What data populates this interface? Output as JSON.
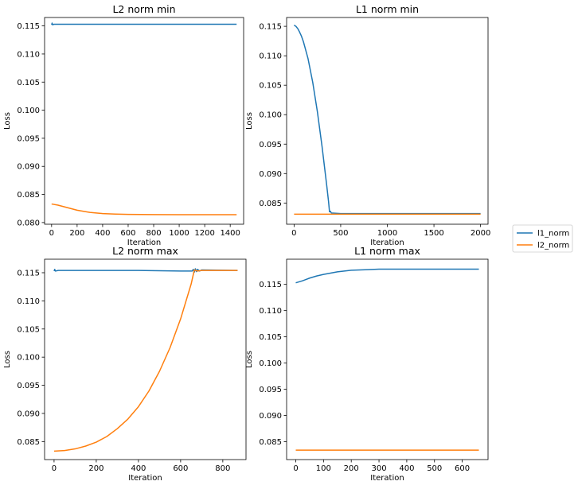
{
  "colors": {
    "l1_norm": "#1f77b4",
    "l2_norm": "#ff7f0e"
  },
  "legend": {
    "placement": "right-center",
    "entries": [
      "l1_norm",
      "l2_norm"
    ]
  },
  "chart_data": [
    {
      "type": "line",
      "title": "L2 norm min",
      "xlabel": "Iteration",
      "ylabel": "Loss",
      "xlim": [
        -55,
        1505
      ],
      "ylim": [
        0.0797,
        0.1165
      ],
      "xticks": [
        0,
        200,
        400,
        600,
        800,
        1000,
        1200,
        1400
      ],
      "yticks": [
        0.08,
        0.085,
        0.09,
        0.095,
        0.1,
        0.105,
        0.11,
        0.115
      ],
      "grid": false,
      "series": [
        {
          "name": "l1_norm",
          "x": [
            0,
            4,
            8,
            20,
            100,
            400,
            800,
            1200,
            1450
          ],
          "y": [
            0.1152,
            0.1155,
            0.1152,
            0.1153,
            0.1153,
            0.1153,
            0.1153,
            0.1153,
            0.1153
          ]
        },
        {
          "name": "l2_norm",
          "x": [
            0,
            50,
            100,
            150,
            200,
            250,
            300,
            350,
            400,
            500,
            600,
            700,
            800,
            1000,
            1200,
            1450
          ],
          "y": [
            0.0833,
            0.0831,
            0.0828,
            0.0825,
            0.0822,
            0.082,
            0.0818,
            0.0817,
            0.0816,
            0.0815,
            0.08145,
            0.08143,
            0.08142,
            0.0814,
            0.0814,
            0.0814
          ]
        }
      ]
    },
    {
      "type": "line",
      "title": "L1 norm min",
      "xlabel": "Iteration",
      "ylabel": "Loss",
      "xlim": [
        -80,
        2080
      ],
      "ylim": [
        0.0814,
        0.1165
      ],
      "xticks": [
        0,
        500,
        1000,
        1500,
        2000
      ],
      "yticks": [
        0.085,
        0.09,
        0.095,
        0.1,
        0.105,
        0.11,
        0.115
      ],
      "grid": false,
      "series": [
        {
          "name": "l1_norm",
          "x": [
            0,
            20,
            40,
            60,
            80,
            100,
            150,
            200,
            250,
            300,
            350,
            370,
            380,
            390,
            400,
            500,
            1000,
            1500,
            2000
          ],
          "y": [
            0.1152,
            0.115,
            0.1146,
            0.114,
            0.1133,
            0.1124,
            0.1095,
            0.1055,
            0.1005,
            0.0946,
            0.088,
            0.0852,
            0.0835,
            0.0836,
            0.0833,
            0.0832,
            0.0832,
            0.0832,
            0.0832
          ]
        },
        {
          "name": "l2_norm",
          "x": [
            0,
            500,
            1000,
            1500,
            2000
          ],
          "y": [
            0.0831,
            0.0831,
            0.0831,
            0.0831,
            0.0831
          ]
        }
      ]
    },
    {
      "type": "line",
      "title": "L2 norm max",
      "xlabel": "Iteration",
      "ylabel": "Loss",
      "xlim": [
        -45,
        910
      ],
      "ylim": [
        0.0818,
        0.1174
      ],
      "xticks": [
        0,
        200,
        400,
        600,
        800
      ],
      "yticks": [
        0.085,
        0.09,
        0.095,
        0.1,
        0.105,
        0.11,
        0.115
      ],
      "grid": false,
      "series": [
        {
          "name": "l1_norm",
          "x": [
            0,
            3,
            6,
            20,
            200,
            400,
            600,
            655,
            660,
            665,
            670,
            675,
            680,
            690,
            700,
            870
          ],
          "y": [
            0.1153,
            0.1156,
            0.1153,
            0.1154,
            0.1154,
            0.1154,
            0.1153,
            0.1153,
            0.1156,
            0.1151,
            0.1157,
            0.1152,
            0.1156,
            0.1153,
            0.1155,
            0.1154
          ]
        },
        {
          "name": "l2_norm",
          "x": [
            0,
            50,
            100,
            150,
            200,
            250,
            300,
            350,
            400,
            450,
            500,
            550,
            600,
            650,
            665,
            680,
            700,
            870
          ],
          "y": [
            0.0833,
            0.0834,
            0.0837,
            0.0842,
            0.0849,
            0.0859,
            0.0873,
            0.089,
            0.0912,
            0.094,
            0.0975,
            0.1017,
            0.1068,
            0.113,
            0.1155,
            0.1153,
            0.1154,
            0.1154
          ]
        }
      ]
    },
    {
      "type": "line",
      "title": "L1 norm max",
      "xlabel": "Iteration",
      "ylabel": "Loss",
      "xlim": [
        -33,
        693
      ],
      "ylim": [
        0.0816,
        0.1198
      ],
      "xticks": [
        0,
        100,
        200,
        300,
        400,
        500,
        600
      ],
      "yticks": [
        0.085,
        0.09,
        0.095,
        0.1,
        0.105,
        0.11,
        0.115
      ],
      "grid": false,
      "series": [
        {
          "name": "l1_norm",
          "x": [
            0,
            25,
            50,
            75,
            100,
            150,
            200,
            250,
            300,
            400,
            500,
            660
          ],
          "y": [
            0.1153,
            0.1157,
            0.1162,
            0.1166,
            0.1169,
            0.1174,
            0.1177,
            0.1178,
            0.1179,
            0.1179,
            0.1179,
            0.1179
          ]
        },
        {
          "name": "l2_norm",
          "x": [
            0,
            200,
            400,
            660
          ],
          "y": [
            0.0834,
            0.0834,
            0.0834,
            0.0834
          ]
        }
      ]
    }
  ]
}
